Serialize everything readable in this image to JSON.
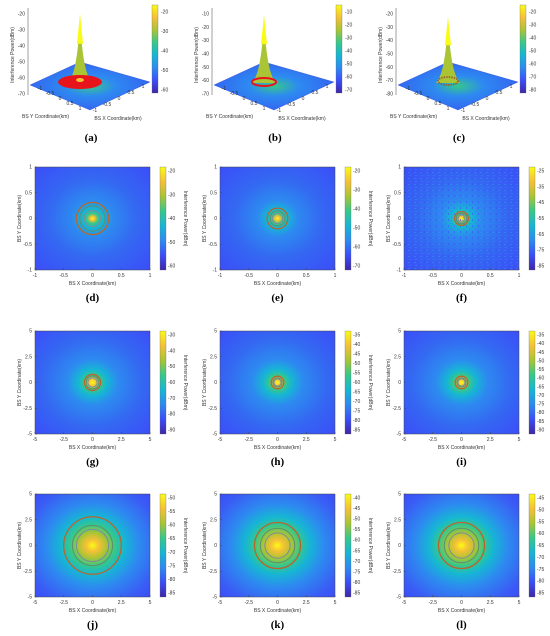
{
  "figure": {
    "panels_3d": [
      {
        "label": "(a)",
        "zlabel": "Interference Power(dBm)",
        "xlabel": "BS X Coordinate(km)",
        "ylabel": "BS Y Coordinate(km)",
        "zticks": [
          "-20",
          "-30",
          "-40",
          "-50",
          "-60",
          "-70"
        ],
        "xyticks": [
          "-1",
          "-0.5",
          "0",
          "0.5",
          "1"
        ],
        "cb_ticks": [
          "-20",
          "-30",
          "-40",
          "-50",
          "-60"
        ],
        "zlim": [
          -70,
          -10
        ],
        "peak": -12,
        "ring": "red-dense"
      },
      {
        "label": "(b)",
        "zlabel": "Interference Power(dBm)",
        "xlabel": "BS X Coordinate(km)",
        "ylabel": "BS Y Coordinate(km)",
        "zticks": [
          "-10",
          "-20",
          "-30",
          "-40",
          "-50",
          "-60",
          "-70"
        ],
        "xyticks": [
          "-1",
          "-0.5",
          "0",
          "0.5",
          "1"
        ],
        "cb_ticks": [
          "-10",
          "-20",
          "-30",
          "-40",
          "-50",
          "-60",
          "-70"
        ],
        "zlim": [
          -70,
          -10
        ],
        "peak": -12,
        "ring": "red-small"
      },
      {
        "label": "(c)",
        "zlabel": "Interference Power(dBm)",
        "xlabel": "BS X Coordinate(km)",
        "ylabel": "BS Y Coordinate(km)",
        "zticks": [
          "-20",
          "-30",
          "-40",
          "-50",
          "-60",
          "-70",
          "-80"
        ],
        "xyticks": [
          "-1",
          "-0.5",
          "0",
          "0.5",
          "1"
        ],
        "cb_ticks": [
          "-20",
          "-30",
          "-40",
          "-50",
          "-60",
          "-70",
          "-80"
        ],
        "zlim": [
          -80,
          -20
        ],
        "peak": -22,
        "ring": "multi"
      }
    ],
    "panels_2d": [
      {
        "label": "(d)",
        "xlabel": "BS X Coordinate(km)",
        "ylabel": "BS Y Coordinate(km)",
        "cblabel": "Interference Power(dBm)",
        "xticks": [
          "-1",
          "-0.5",
          "0",
          "0.5",
          "1"
        ],
        "yticks": [
          "1",
          "0.5",
          "0",
          "-0.5",
          "-1"
        ],
        "cb_ticks": [
          "-20",
          "-30",
          "-40",
          "-50",
          "-60"
        ],
        "contour_radii": [
          0.28,
          0.22,
          0.14
        ],
        "noise": false
      },
      {
        "label": "(e)",
        "xlabel": "BS X Coordinate(km)",
        "ylabel": "BS Y Coordinate(km)",
        "cblabel": "Interference Power(dBm)",
        "xticks": [
          "-1",
          "-0.5",
          "0",
          "0.5",
          "1"
        ],
        "yticks": [
          "1",
          "0.5",
          "0",
          "-0.5",
          "-1"
        ],
        "cb_ticks": [
          "-20",
          "-30",
          "-40",
          "-50",
          "-60",
          "-70"
        ],
        "contour_radii": [
          0.18,
          0.13,
          0.09
        ],
        "noise": false
      },
      {
        "label": "(f)",
        "xlabel": "BS X Coordinate(km)",
        "ylabel": "BS Y Coordinate(km)",
        "cblabel": "Interference Power(dBm)",
        "xticks": [
          "-1",
          "-0.5",
          "0",
          "0.5",
          "1"
        ],
        "yticks": [
          "1",
          "0.5",
          "0",
          "-0.5",
          "-1"
        ],
        "cb_ticks": [
          "-25",
          "-35",
          "-45",
          "-55",
          "-65",
          "-75",
          "-85"
        ],
        "contour_radii": [
          0.12,
          0.09,
          0.06
        ],
        "noise": true
      },
      {
        "label": "(g)",
        "xlabel": "BS X Coordinate(km)",
        "ylabel": "BS Y Coordinate(km)",
        "cblabel": "Interference Power(dBm)",
        "xticks": [
          "-5",
          "-2.5",
          "0",
          "2.5",
          "5"
        ],
        "yticks": [
          "5",
          "2.5",
          "0",
          "-2.5",
          "-5"
        ],
        "cb_ticks": [
          "-30",
          "-40",
          "-50",
          "-60",
          "-70",
          "-80",
          "-90"
        ],
        "contour_radii": [
          0.14,
          0.11,
          0.08
        ],
        "noise": false
      },
      {
        "label": "(h)",
        "xlabel": "BS X Coordinate(km)",
        "ylabel": "BS Y Coordinate(km)",
        "cblabel": "Interference Power(dBm)",
        "xticks": [
          "-5",
          "-2.5",
          "0",
          "2.5",
          "5"
        ],
        "yticks": [
          "5",
          "2.5",
          "0",
          "-2.5",
          "-5"
        ],
        "cb_ticks": [
          "-35",
          "-40",
          "-45",
          "-50",
          "-55",
          "-60",
          "-65",
          "-70",
          "-75",
          "-80",
          "-85"
        ],
        "contour_radii": [
          0.11,
          0.08,
          0.06
        ],
        "noise": false
      },
      {
        "label": "(i)",
        "xlabel": "BS X Coordinate(km)",
        "ylabel": "BS Y Coordinate(km)",
        "cblabel": "Interference Power(dBm)",
        "xticks": [
          "-5",
          "-2.5",
          "0",
          "2.5",
          "5"
        ],
        "yticks": [
          "5",
          "2.5",
          "0",
          "-2.5",
          "-5"
        ],
        "cb_ticks": [
          "-35",
          "-40",
          "-45",
          "-50",
          "-55",
          "-60",
          "-65",
          "-70",
          "-75",
          "-80",
          "-85",
          "-90"
        ],
        "contour_radii": [
          0.11,
          0.08,
          0.06
        ],
        "noise": false
      },
      {
        "label": "(j)",
        "xlabel": "BS X Coordinate(km)",
        "ylabel": "BS Y Coordinate(km)",
        "cblabel": "Interference Power(dBm)",
        "xticks": [
          "-5",
          "-2.5",
          "0",
          "2.5",
          "5"
        ],
        "yticks": [
          "5",
          "2.5",
          "0",
          "-2.5",
          "-5"
        ],
        "cb_ticks": [
          "-50",
          "-55",
          "-60",
          "-65",
          "-70",
          "-75",
          "-80",
          "-85"
        ],
        "contour_radii": [
          0.5,
          0.35,
          0.28
        ],
        "noise": false
      },
      {
        "label": "(k)",
        "xlabel": "BS X Coordinate(km)",
        "ylabel": "BS Y Coordinate(km)",
        "cblabel": "Interference Power(dBm)",
        "xticks": [
          "-5",
          "-2.5",
          "0",
          "2.5",
          "5"
        ],
        "yticks": [
          "5",
          "2.5",
          "0",
          "-2.5",
          "-5"
        ],
        "cb_ticks": [
          "-40",
          "-45",
          "-50",
          "-55",
          "-60",
          "-65",
          "-70",
          "-75",
          "-80",
          "-85"
        ],
        "contour_radii": [
          0.4,
          0.3,
          0.22
        ],
        "noise": false
      },
      {
        "label": "(l)",
        "xlabel": "BS X Coordinate(km)",
        "ylabel": "BS Y Coordinate(km)",
        "cblabel": "Interference Power(dBm)",
        "xticks": [
          "-5",
          "-2.5",
          "0",
          "2.5",
          "5"
        ],
        "yticks": [
          "5",
          "2.5",
          "0",
          "-2.5",
          "-5"
        ],
        "cb_ticks": [
          "-45",
          "-50",
          "-55",
          "-60",
          "-65",
          "-70",
          "-75",
          "-80",
          "-85"
        ],
        "contour_radii": [
          0.4,
          0.3,
          0.22
        ],
        "noise": false
      }
    ]
  },
  "colors": {
    "colormap": [
      "#3e26a8",
      "#3b4ef9",
      "#2d8af0",
      "#16b6d4",
      "#36c88a",
      "#a9c434",
      "#f5c036",
      "#f9fb15"
    ],
    "contour": [
      "#b8652e",
      "#5d8f6c",
      "#7c8c9b"
    ],
    "ring_red": "#e8141c"
  },
  "chart_data": [
    {
      "type": "heatmap",
      "panel": "(a)",
      "title": "",
      "zlabel": "Interference Power(dBm)",
      "xlabel": "BS X Coordinate(km)",
      "ylabel": "BS Y Coordinate(km)",
      "xlim": [
        -1,
        1
      ],
      "ylim": [
        -1,
        1
      ],
      "zlim": [
        -70,
        -10
      ],
      "peak": -12,
      "surface": "3d"
    },
    {
      "type": "heatmap",
      "panel": "(b)",
      "title": "",
      "zlabel": "Interference Power(dBm)",
      "xlabel": "BS X Coordinate(km)",
      "ylabel": "BS Y Coordinate(km)",
      "xlim": [
        -1,
        1
      ],
      "ylim": [
        -1,
        1
      ],
      "zlim": [
        -70,
        -10
      ],
      "peak": -12,
      "surface": "3d"
    },
    {
      "type": "heatmap",
      "panel": "(c)",
      "title": "",
      "zlabel": "Interference Power(dBm)",
      "xlabel": "BS X Coordinate(km)",
      "ylabel": "BS Y Coordinate(km)",
      "xlim": [
        -1,
        1
      ],
      "ylim": [
        -1,
        1
      ],
      "zlim": [
        -80,
        -20
      ],
      "peak": -22,
      "surface": "3d"
    },
    {
      "type": "heatmap",
      "panel": "(d)",
      "xlim": [
        -1,
        1
      ],
      "ylim": [
        -1,
        1
      ],
      "clim": [
        -60,
        -15
      ],
      "grid": false
    },
    {
      "type": "heatmap",
      "panel": "(e)",
      "xlim": [
        -1,
        1
      ],
      "ylim": [
        -1,
        1
      ],
      "clim": [
        -70,
        -20
      ],
      "grid": false
    },
    {
      "type": "heatmap",
      "panel": "(f)",
      "xlim": [
        -1,
        1
      ],
      "ylim": [
        -1,
        1
      ],
      "clim": [
        -85,
        -25
      ],
      "grid": false
    },
    {
      "type": "heatmap",
      "panel": "(g)",
      "xlim": [
        -5,
        5
      ],
      "ylim": [
        -5,
        5
      ],
      "clim": [
        -90,
        -30
      ],
      "grid": false
    },
    {
      "type": "heatmap",
      "panel": "(h)",
      "xlim": [
        -5,
        5
      ],
      "ylim": [
        -5,
        5
      ],
      "clim": [
        -85,
        -35
      ],
      "grid": false
    },
    {
      "type": "heatmap",
      "panel": "(i)",
      "xlim": [
        -5,
        5
      ],
      "ylim": [
        -5,
        5
      ],
      "clim": [
        -90,
        -35
      ],
      "grid": false
    },
    {
      "type": "heatmap",
      "panel": "(j)",
      "xlim": [
        -5,
        5
      ],
      "ylim": [
        -5,
        5
      ],
      "clim": [
        -85,
        -50
      ],
      "grid": false
    },
    {
      "type": "heatmap",
      "panel": "(k)",
      "xlim": [
        -5,
        5
      ],
      "ylim": [
        -5,
        5
      ],
      "clim": [
        -85,
        -40
      ],
      "grid": false
    },
    {
      "type": "heatmap",
      "panel": "(l)",
      "xlim": [
        -5,
        5
      ],
      "ylim": [
        -5,
        5
      ],
      "clim": [
        -85,
        -45
      ],
      "grid": false
    }
  ]
}
